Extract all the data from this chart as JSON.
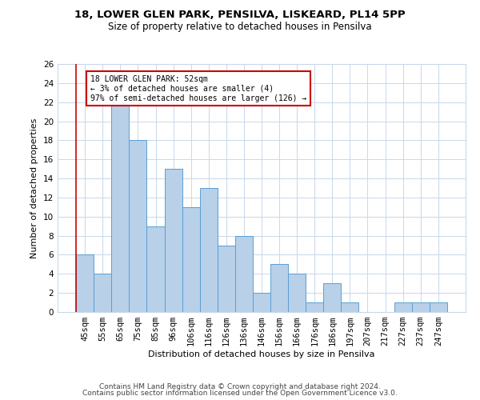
{
  "title1": "18, LOWER GLEN PARK, PENSILVA, LISKEARD, PL14 5PP",
  "title2": "Size of property relative to detached houses in Pensilva",
  "xlabel": "Distribution of detached houses by size in Pensilva",
  "ylabel": "Number of detached properties",
  "categories": [
    "45sqm",
    "55sqm",
    "65sqm",
    "75sqm",
    "85sqm",
    "96sqm",
    "106sqm",
    "116sqm",
    "126sqm",
    "136sqm",
    "146sqm",
    "156sqm",
    "166sqm",
    "176sqm",
    "186sqm",
    "197sqm",
    "207sqm",
    "217sqm",
    "227sqm",
    "237sqm",
    "247sqm"
  ],
  "values": [
    6,
    4,
    22,
    18,
    9,
    15,
    11,
    13,
    7,
    8,
    2,
    5,
    4,
    1,
    3,
    1,
    0,
    0,
    1,
    1,
    1
  ],
  "bar_color": "#b8d0e8",
  "bar_edge_color": "#5a9fd4",
  "annotation_text_line1": "18 LOWER GLEN PARK: 52sqm",
  "annotation_text_line2": "← 3% of detached houses are smaller (4)",
  "annotation_text_line3": "97% of semi-detached houses are larger (126) →",
  "annotation_box_color": "#ffffff",
  "annotation_box_edge": "#cc0000",
  "marker_line_color": "#cc0000",
  "ylim": [
    0,
    26
  ],
  "yticks": [
    0,
    2,
    4,
    6,
    8,
    10,
    12,
    14,
    16,
    18,
    20,
    22,
    24,
    26
  ],
  "footer1": "Contains HM Land Registry data © Crown copyright and database right 2024.",
  "footer2": "Contains public sector information licensed under the Open Government Licence v3.0.",
  "bg_color": "#ffffff",
  "grid_color": "#c8d8ea",
  "title1_fontsize": 9.5,
  "title2_fontsize": 8.5,
  "axis_label_fontsize": 8,
  "tick_fontsize": 7.5,
  "annotation_fontsize": 7,
  "footer_fontsize": 6.5
}
